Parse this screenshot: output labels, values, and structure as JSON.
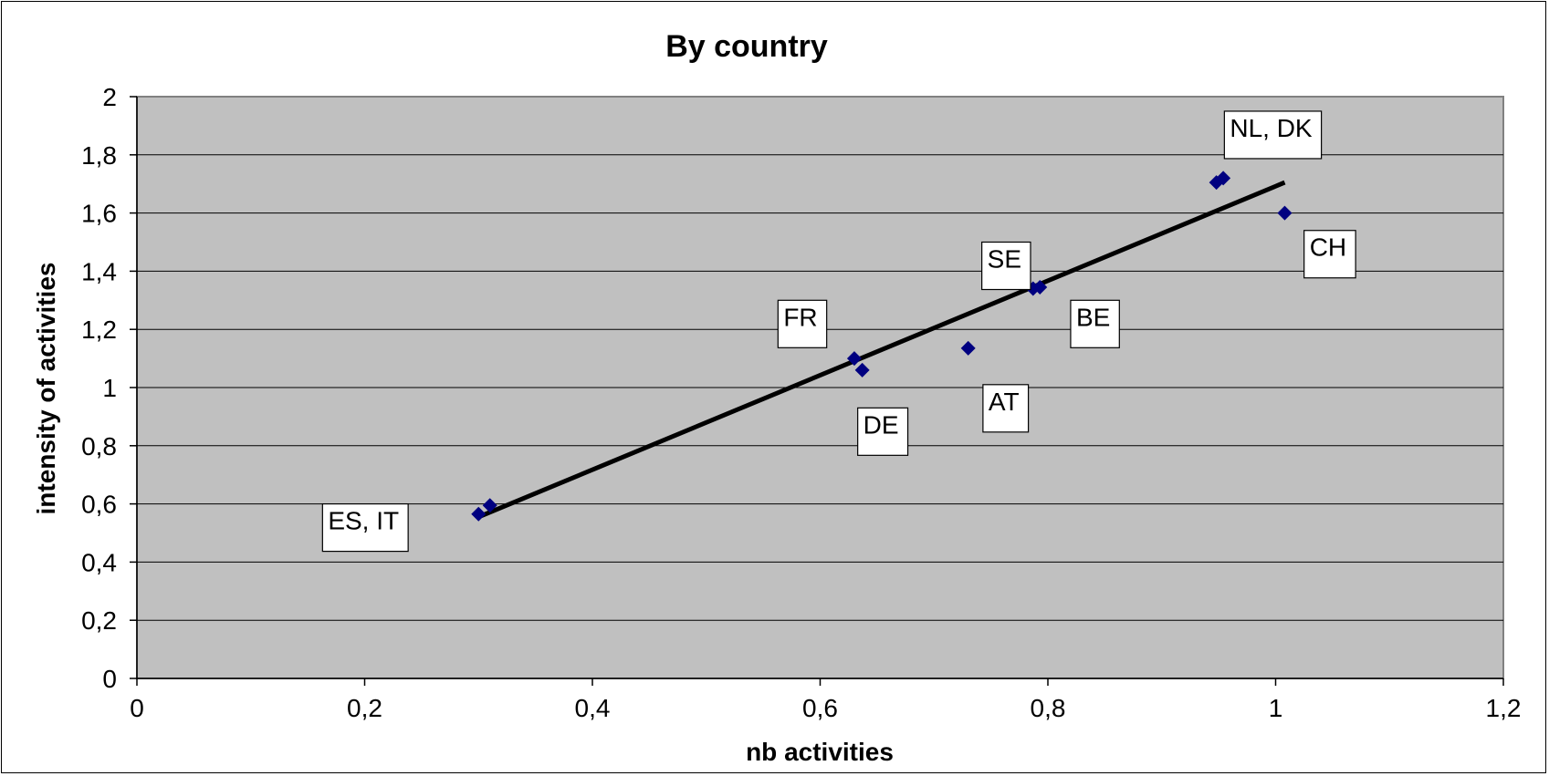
{
  "chart_data": {
    "type": "scatter",
    "title": "By country",
    "xlabel": "nb activities",
    "ylabel": "intensity of activities",
    "xlim": [
      0,
      1.2
    ],
    "ylim": [
      0,
      2
    ],
    "x_ticks": [
      "0",
      "0,2",
      "0,4",
      "0,6",
      "0,8",
      "1",
      "1,2"
    ],
    "y_ticks": [
      "0",
      "0,2",
      "0,4",
      "0,6",
      "0,8",
      "1",
      "1,2",
      "1,4",
      "1,6",
      "1,8",
      "2"
    ],
    "grid": true,
    "colors": {
      "plot_bg": "#C0C0C0",
      "marker": "#000080",
      "trendline": "#000000",
      "grid": "#000000"
    },
    "points": [
      {
        "x": 0.3,
        "y": 0.565
      },
      {
        "x": 0.31,
        "y": 0.595
      },
      {
        "x": 0.63,
        "y": 1.1
      },
      {
        "x": 0.637,
        "y": 1.06
      },
      {
        "x": 0.73,
        "y": 1.135
      },
      {
        "x": 0.787,
        "y": 1.34
      },
      {
        "x": 0.793,
        "y": 1.345
      },
      {
        "x": 0.948,
        "y": 1.705
      },
      {
        "x": 0.954,
        "y": 1.72
      },
      {
        "x": 1.008,
        "y": 1.6
      }
    ],
    "trendline": {
      "x": [
        0.3,
        1.008
      ],
      "y": [
        0.555,
        1.705
      ]
    },
    "annotations": [
      {
        "text": "ES, IT",
        "x": 0.163,
        "y": 0.6
      },
      {
        "text": "FR",
        "x": 0.563,
        "y": 1.3
      },
      {
        "text": "DE",
        "x": 0.633,
        "y": 0.93
      },
      {
        "text": "AT",
        "x": 0.743,
        "y": 1.01
      },
      {
        "text": "SE",
        "x": 0.742,
        "y": 1.5
      },
      {
        "text": "BE",
        "x": 0.82,
        "y": 1.3
      },
      {
        "text": "NL, DK",
        "x": 0.955,
        "y": 1.95
      },
      {
        "text": "CH",
        "x": 1.025,
        "y": 1.54
      }
    ]
  }
}
